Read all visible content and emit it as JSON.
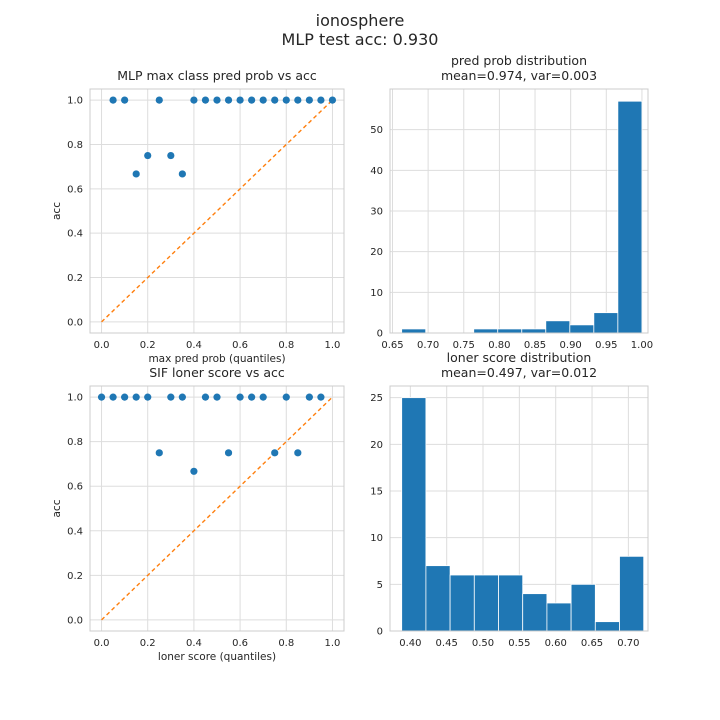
{
  "figure": {
    "title_line1": "ionosphere",
    "title_line2": "MLP test acc: 0.930"
  },
  "colors": {
    "marker": "#1f77b4",
    "bar": "#1f77b4",
    "diagonal": "#ff7f0e",
    "grid": "#dddddd",
    "spine": "#cccccc"
  },
  "chart_data": [
    {
      "id": "tl",
      "type": "scatter",
      "title": [
        "MLP max class pred prob vs acc"
      ],
      "xlabel": "max pred prob (quantiles)",
      "ylabel": "acc",
      "xlim": [
        -0.05,
        1.05
      ],
      "ylim": [
        -0.05,
        1.05
      ],
      "xticks": [
        0.0,
        0.2,
        0.4,
        0.6,
        0.8,
        1.0
      ],
      "xticklabels": [
        "0.0",
        "0.2",
        "0.4",
        "0.6",
        "0.8",
        "1.0"
      ],
      "yticks": [
        0.0,
        0.2,
        0.4,
        0.6,
        0.8,
        1.0
      ],
      "yticklabels": [
        "0.0",
        "0.2",
        "0.4",
        "0.6",
        "0.8",
        "1.0"
      ],
      "grid": true,
      "diagonal": true,
      "x": [
        0.05,
        0.1,
        0.15,
        0.2,
        0.25,
        0.3,
        0.35,
        0.4,
        0.45,
        0.5,
        0.55,
        0.6,
        0.65,
        0.7,
        0.75,
        0.8,
        0.85,
        0.9,
        0.95,
        1.0
      ],
      "y": [
        1.0,
        1.0,
        0.667,
        0.75,
        1.0,
        0.75,
        0.667,
        1.0,
        1.0,
        1.0,
        1.0,
        1.0,
        1.0,
        1.0,
        1.0,
        1.0,
        1.0,
        1.0,
        1.0,
        1.0
      ]
    },
    {
      "id": "tr",
      "type": "bar",
      "title": [
        "pred prob distribution",
        "mean=0.974, var=0.003"
      ],
      "xlabel": "",
      "ylabel": "",
      "xlim": [
        0.6465,
        1.0085
      ],
      "ylim": [
        0,
        60
      ],
      "xticks": [
        0.65,
        0.7,
        0.75,
        0.8,
        0.85,
        0.9,
        0.95,
        1.0
      ],
      "xticklabels": [
        "0.65",
        "0.70",
        "0.75",
        "0.80",
        "0.85",
        "0.90",
        "0.95",
        "1.00"
      ],
      "yticks": [
        0,
        10,
        20,
        30,
        40,
        50
      ],
      "yticklabels": [
        "0",
        "10",
        "20",
        "30",
        "40",
        "50"
      ],
      "grid": true,
      "bin_edges": [
        0.6629,
        0.6966,
        0.7303,
        0.764,
        0.7977,
        0.8314,
        0.8651,
        0.8988,
        0.9325,
        0.9662,
        1.0
      ],
      "values": [
        1,
        0,
        0,
        1,
        1,
        1,
        3,
        2,
        5,
        57
      ]
    },
    {
      "id": "bl",
      "type": "scatter",
      "title": [
        "SIF loner score vs acc"
      ],
      "xlabel": "loner score (quantiles)",
      "ylabel": "acc",
      "xlim": [
        -0.05,
        1.05
      ],
      "ylim": [
        -0.05,
        1.05
      ],
      "xticks": [
        0.0,
        0.2,
        0.4,
        0.6,
        0.8,
        1.0
      ],
      "xticklabels": [
        "0.0",
        "0.2",
        "0.4",
        "0.6",
        "0.8",
        "1.0"
      ],
      "yticks": [
        0.0,
        0.2,
        0.4,
        0.6,
        0.8,
        1.0
      ],
      "yticklabels": [
        "0.0",
        "0.2",
        "0.4",
        "0.6",
        "0.8",
        "1.0"
      ],
      "grid": true,
      "diagonal": true,
      "x": [
        0.0,
        0.05,
        0.1,
        0.15,
        0.2,
        0.25,
        0.3,
        0.35,
        0.4,
        0.45,
        0.5,
        0.55,
        0.6,
        0.65,
        0.7,
        0.75,
        0.8,
        0.85,
        0.9,
        0.95
      ],
      "y": [
        1.0,
        1.0,
        1.0,
        1.0,
        1.0,
        0.75,
        1.0,
        1.0,
        0.667,
        1.0,
        1.0,
        0.75,
        1.0,
        1.0,
        1.0,
        0.75,
        1.0,
        0.75,
        1.0,
        1.0
      ]
    },
    {
      "id": "br",
      "type": "bar",
      "title": [
        "loner score distribution",
        "mean=0.497, var=0.012"
      ],
      "xlabel": "",
      "ylabel": "",
      "xlim": [
        0.372,
        0.727
      ],
      "ylim": [
        0,
        26.25
      ],
      "xticks": [
        0.4,
        0.45,
        0.5,
        0.55,
        0.6,
        0.65,
        0.7
      ],
      "xticklabels": [
        "0.40",
        "0.45",
        "0.50",
        "0.55",
        "0.60",
        "0.65",
        "0.70"
      ],
      "yticks": [
        0,
        5,
        10,
        15,
        20,
        25
      ],
      "yticklabels": [
        "0",
        "5",
        "10",
        "15",
        "20",
        "25"
      ],
      "grid": true,
      "bin_edges": [
        0.3881,
        0.4214,
        0.4547,
        0.488,
        0.5213,
        0.5546,
        0.5879,
        0.6212,
        0.6545,
        0.6878,
        0.7211
      ],
      "values": [
        25,
        7,
        6,
        6,
        6,
        4,
        3,
        5,
        1,
        8
      ]
    }
  ]
}
